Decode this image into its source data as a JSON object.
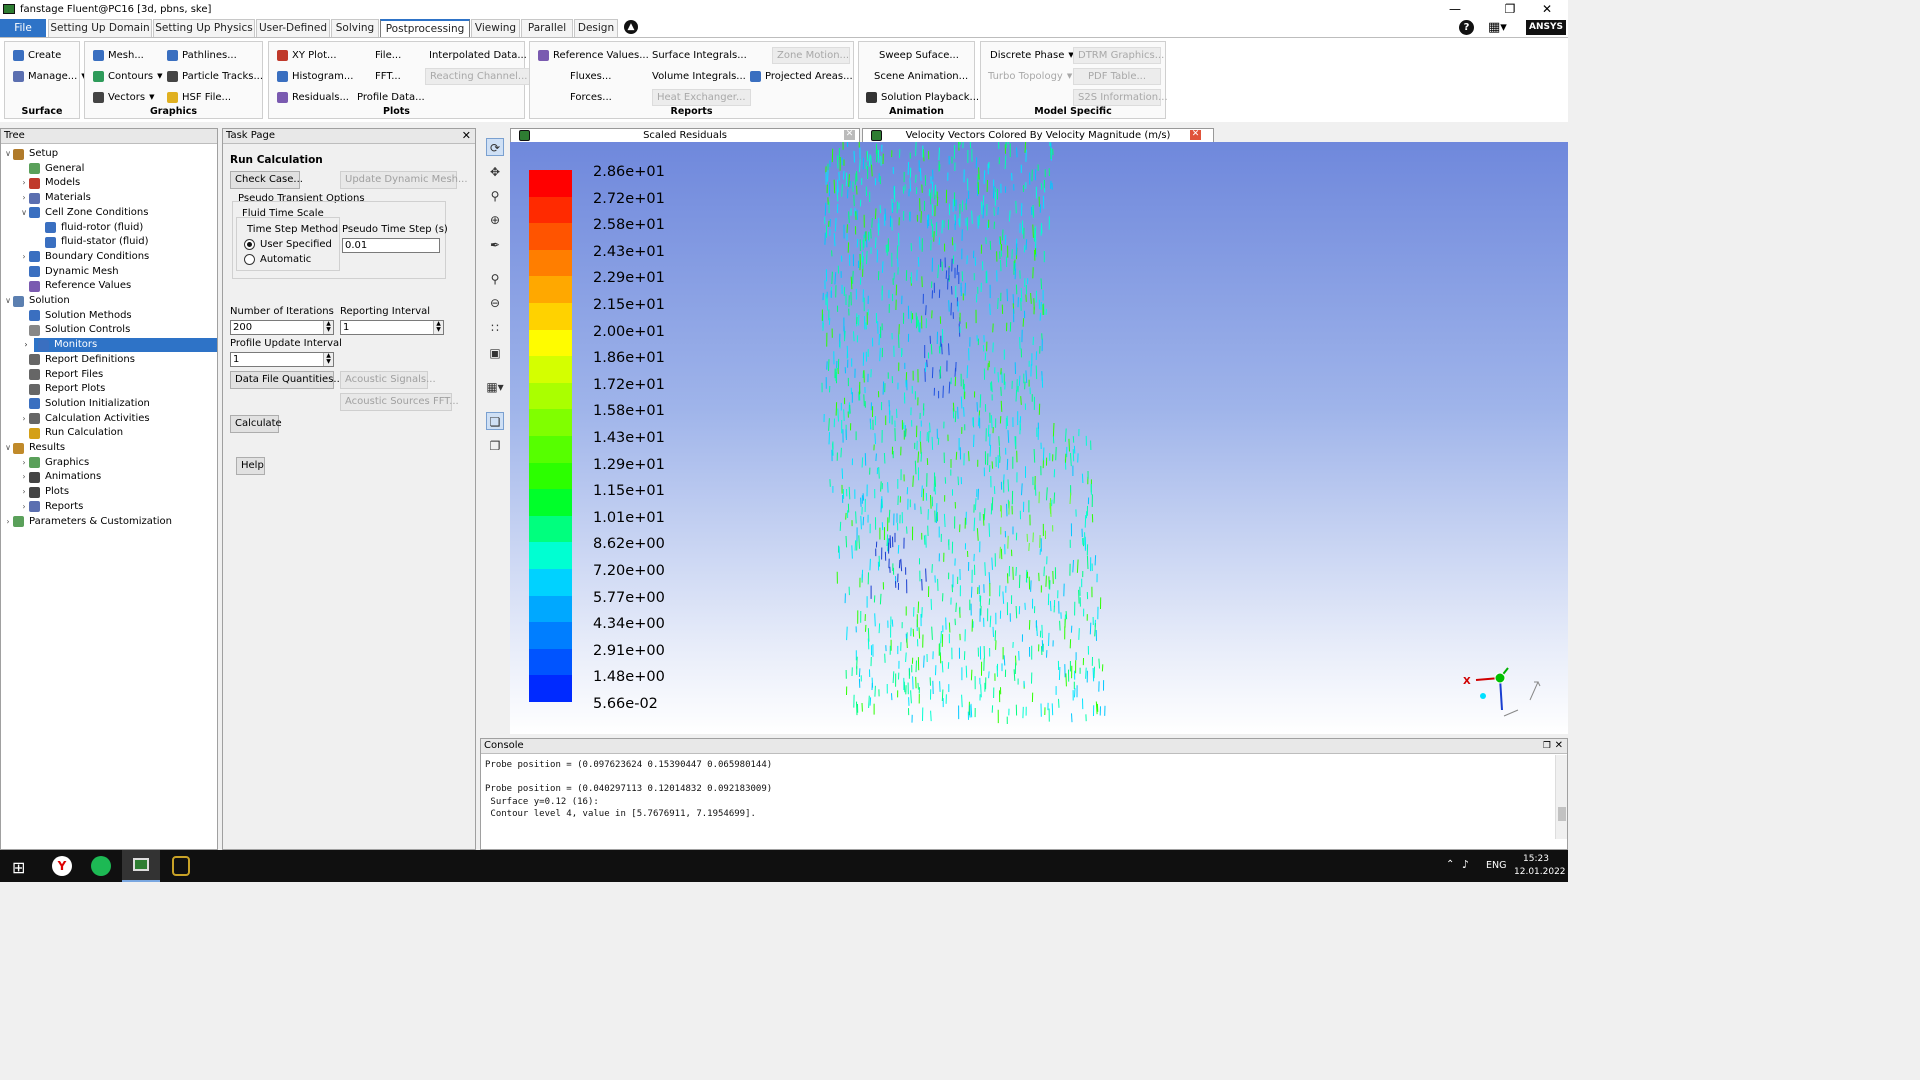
{
  "window": {
    "title": "fanstage Fluent@PC16  [3d, pbns, ske]"
  },
  "menu": {
    "tabs": [
      "File",
      "Setting Up Domain",
      "Setting Up Physics",
      "User-Defined",
      "Solving",
      "Postprocessing",
      "Viewing",
      "Parallel",
      "Design"
    ],
    "active": "Postprocessing",
    "brand": "ANSYS"
  },
  "ribbon": {
    "surface": {
      "label": "Surface",
      "create": "Create",
      "manage": "Manage..."
    },
    "graphics": {
      "label": "Graphics",
      "mesh": "Mesh...",
      "contours": "Contours",
      "vectors": "Vectors",
      "pathlines": "Pathlines...",
      "particle_tracks": "Particle Tracks...",
      "hsf_file": "HSF File..."
    },
    "plots": {
      "label": "Plots",
      "xy_plot": "XY Plot...",
      "histogram": "Histogram...",
      "residuals": "Residuals...",
      "file": "File...",
      "fft": "FFT...",
      "profile_data": "Profile Data...",
      "interpolated_data": "Interpolated Data...",
      "reacting_channel": "Reacting Channel..."
    },
    "reports": {
      "label": "Reports",
      "reference_values": "Reference Values...",
      "fluxes": "Fluxes...",
      "forces": "Forces...",
      "surface_integrals": "Surface Integrals...",
      "volume_integrals": "Volume Integrals...",
      "heat_exchanger": "Heat Exchanger...",
      "zone_motion": "Zone Motion...",
      "projected_areas": "Projected Areas..."
    },
    "animation": {
      "label": "Animation",
      "sweep_surface": "Sweep Suface...",
      "scene_animation": "Scene Animation...",
      "solution_playback": "Solution Playback..."
    },
    "model_specific": {
      "label": "Model Specific",
      "discrete_phase": "Discrete Phase",
      "turbo_topology": "Turbo Topology",
      "dtrm_graphics": "DTRM Graphics...",
      "pdf_table": "PDF Table...",
      "s2s_information": "S2S Information..."
    }
  },
  "tree": {
    "title": "Tree",
    "items": [
      {
        "label": "Setup",
        "level": 0,
        "arrow": "v",
        "color": "#b07a2a"
      },
      {
        "label": "General",
        "level": 1,
        "arrow": "",
        "color": "#5aa05a"
      },
      {
        "label": "Models",
        "level": 1,
        "arrow": ">",
        "color": "#c0392b"
      },
      {
        "label": "Materials",
        "level": 1,
        "arrow": ">",
        "color": "#5b6fb0"
      },
      {
        "label": "Cell Zone Conditions",
        "level": 1,
        "arrow": "v",
        "color": "#3a6fc0"
      },
      {
        "label": "fluid-rotor (fluid)",
        "level": 2,
        "arrow": "",
        "color": "#3a6fc0"
      },
      {
        "label": "fluid-stator (fluid)",
        "level": 2,
        "arrow": "",
        "color": "#3a6fc0"
      },
      {
        "label": "Boundary Conditions",
        "level": 1,
        "arrow": ">",
        "color": "#3a6fc0"
      },
      {
        "label": "Dynamic Mesh",
        "level": 1,
        "arrow": "",
        "color": "#3a6fc0"
      },
      {
        "label": "Reference Values",
        "level": 1,
        "arrow": "",
        "color": "#7a5ab0"
      },
      {
        "label": "Solution",
        "level": 0,
        "arrow": "v",
        "color": "#5b7fb0"
      },
      {
        "label": "Solution Methods",
        "level": 1,
        "arrow": "",
        "color": "#3a6fc0"
      },
      {
        "label": "Solution Controls",
        "level": 1,
        "arrow": "",
        "color": "#888888"
      },
      {
        "label": "Monitors",
        "level": 1,
        "arrow": ">",
        "color": "#3a6fc0",
        "selected": true
      },
      {
        "label": "Report Definitions",
        "level": 1,
        "arrow": "",
        "color": "#666666"
      },
      {
        "label": "Report Files",
        "level": 1,
        "arrow": "",
        "color": "#666666"
      },
      {
        "label": "Report Plots",
        "level": 1,
        "arrow": "",
        "color": "#666666"
      },
      {
        "label": "Solution Initialization",
        "level": 1,
        "arrow": "",
        "color": "#3a6fc0"
      },
      {
        "label": "Calculation Activities",
        "level": 1,
        "arrow": ">",
        "color": "#666666"
      },
      {
        "label": "Run Calculation",
        "level": 1,
        "arrow": "",
        "color": "#d4a017"
      },
      {
        "label": "Results",
        "level": 0,
        "arrow": "v",
        "color": "#c08a2a"
      },
      {
        "label": "Graphics",
        "level": 1,
        "arrow": ">",
        "color": "#5aa05a"
      },
      {
        "label": "Animations",
        "level": 1,
        "arrow": ">",
        "color": "#444444"
      },
      {
        "label": "Plots",
        "level": 1,
        "arrow": ">",
        "color": "#444444"
      },
      {
        "label": "Reports",
        "level": 1,
        "arrow": ">",
        "color": "#5b6fb0"
      },
      {
        "label": "Parameters & Customization",
        "level": 0,
        "arrow": ">",
        "color": "#5aa05a"
      }
    ]
  },
  "task": {
    "title": "Task Page",
    "heading": "Run Calculation",
    "check_case": "Check Case...",
    "update_dynamic_mesh": "Update Dynamic Mesh...",
    "pseudo_transient_options": "Pseudo Transient Options",
    "fluid_time_scale": "Fluid Time Scale",
    "time_step_method": "Time Step Method",
    "pseudo_time_step": "Pseudo Time Step (s)",
    "user_specified": "User Specified",
    "automatic": "Automatic",
    "pseudo_time_step_value": "0.01",
    "number_of_iterations": "Number of Iterations",
    "iterations_value": "200",
    "reporting_interval": "Reporting Interval",
    "reporting_value": "1",
    "profile_update_interval": "Profile Update Interval",
    "profile_value": "1",
    "data_file_quantities": "Data File Quantities...",
    "acoustic_signals": "Acoustic Signals...",
    "acoustic_sources_fft": "Acoustic Sources FFT...",
    "calculate": "Calculate",
    "help": "Help"
  },
  "graphics_tabs": [
    {
      "label": "Scaled Residuals"
    },
    {
      "label": "Velocity Vectors Colored By Velocity Magnitude (m/s)"
    }
  ],
  "legend": {
    "levels": [
      "2.86e+01",
      "2.72e+01",
      "2.58e+01",
      "2.43e+01",
      "2.29e+01",
      "2.15e+01",
      "2.00e+01",
      "1.86e+01",
      "1.72e+01",
      "1.58e+01",
      "1.43e+01",
      "1.29e+01",
      "1.15e+01",
      "1.01e+01",
      "8.62e+00",
      "7.20e+00",
      "5.77e+00",
      "4.34e+00",
      "2.91e+00",
      "1.48e+00",
      "5.66e-02"
    ],
    "colors": [
      "#ff0000",
      "#ff2a00",
      "#ff5400",
      "#ff7e00",
      "#ffa800",
      "#ffd200",
      "#fffc00",
      "#d4ff00",
      "#aaff00",
      "#80ff00",
      "#56ff00",
      "#2cff00",
      "#00ff2a",
      "#00ff7e",
      "#00ffd2",
      "#00d2ff",
      "#00a8ff",
      "#007eff",
      "#0054ff",
      "#002aff",
      "#0000ff"
    ]
  },
  "axis_triad": {
    "x_label": "X"
  },
  "console": {
    "title": "Console",
    "lines": [
      "Probe position = (0.097623624 0.15390447 0.065980144)",
      "",
      "Probe position = (0.040297113 0.12014832 0.092183009)",
      " Surface y=0.12 (16):",
      " Contour level 4, value in [5.7676911, 7.1954699]."
    ]
  },
  "taskbar": {
    "time": "15:23",
    "date": "12.01.2022",
    "lang": "ENG"
  }
}
